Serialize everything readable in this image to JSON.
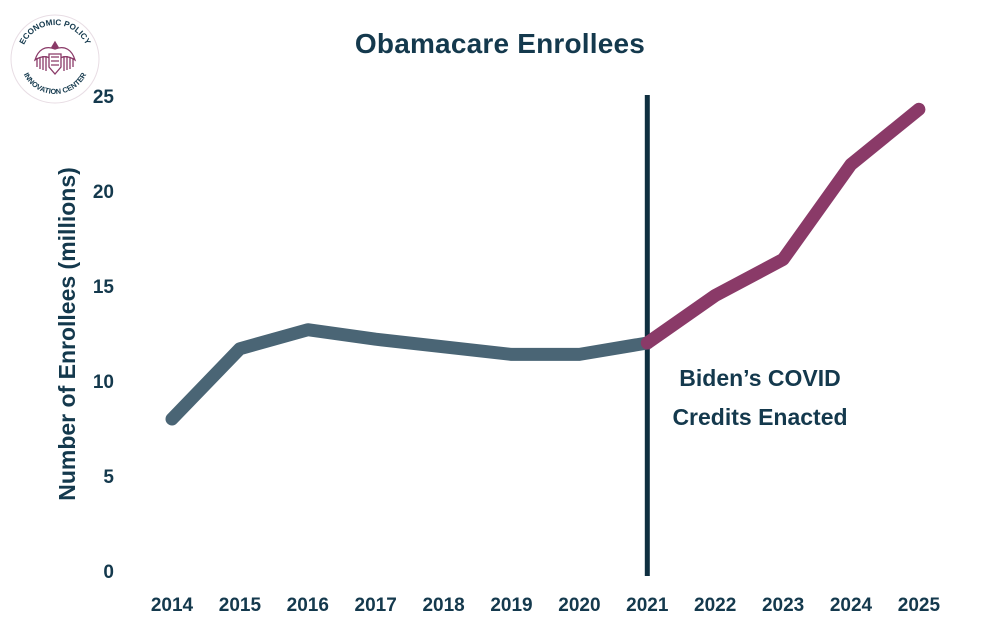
{
  "logo": {
    "text_top": "ECONOMIC POLICY",
    "text_bottom": "INNOVATION CENTER",
    "icon": "eagle-seal-icon",
    "color": "#8a3a68"
  },
  "colors": {
    "text": "#14394d",
    "pre_line": "#4a6575",
    "post_line": "#8a3a68",
    "divider": "#0f2f40"
  },
  "chart_data": {
    "type": "line",
    "title": "Obamacare Enrollees",
    "xlabel": "",
    "ylabel": "Number of Enrollees (millions)",
    "x": [
      "2014",
      "2015",
      "2016",
      "2017",
      "2018",
      "2019",
      "2020",
      "2021",
      "2022",
      "2023",
      "2024",
      "2025"
    ],
    "ylim": [
      0,
      25
    ],
    "yticks": [
      0,
      5,
      10,
      15,
      20,
      25
    ],
    "grid": false,
    "series": [
      {
        "values": [
          8.0,
          11.7,
          12.7,
          12.2,
          11.8,
          11.4,
          11.4,
          12.0,
          null,
          null,
          null,
          null
        ]
      },
      {
        "values": [
          null,
          null,
          null,
          null,
          null,
          null,
          null,
          12.0,
          14.5,
          16.4,
          21.4,
          24.3
        ]
      }
    ],
    "annotations": [
      {
        "type": "vertical-line",
        "at": "2021"
      }
    ],
    "annotation_text": [
      "Biden’s COVID",
      "Credits Enacted"
    ]
  }
}
